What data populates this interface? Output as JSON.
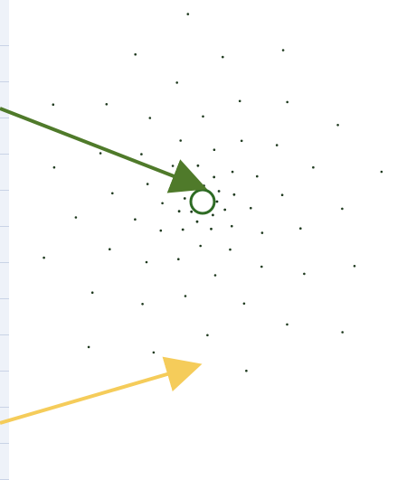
{
  "figure": {
    "dot_color": "#1f3a1f",
    "center_ring_color": "#2e6b24",
    "arrows": [
      {
        "name": "green-arrow",
        "color": "#4f7a2a"
      },
      {
        "name": "yellow-arrow",
        "color": "#f5cc5a"
      }
    ],
    "edge_strip_color": "#eef2f9"
  }
}
